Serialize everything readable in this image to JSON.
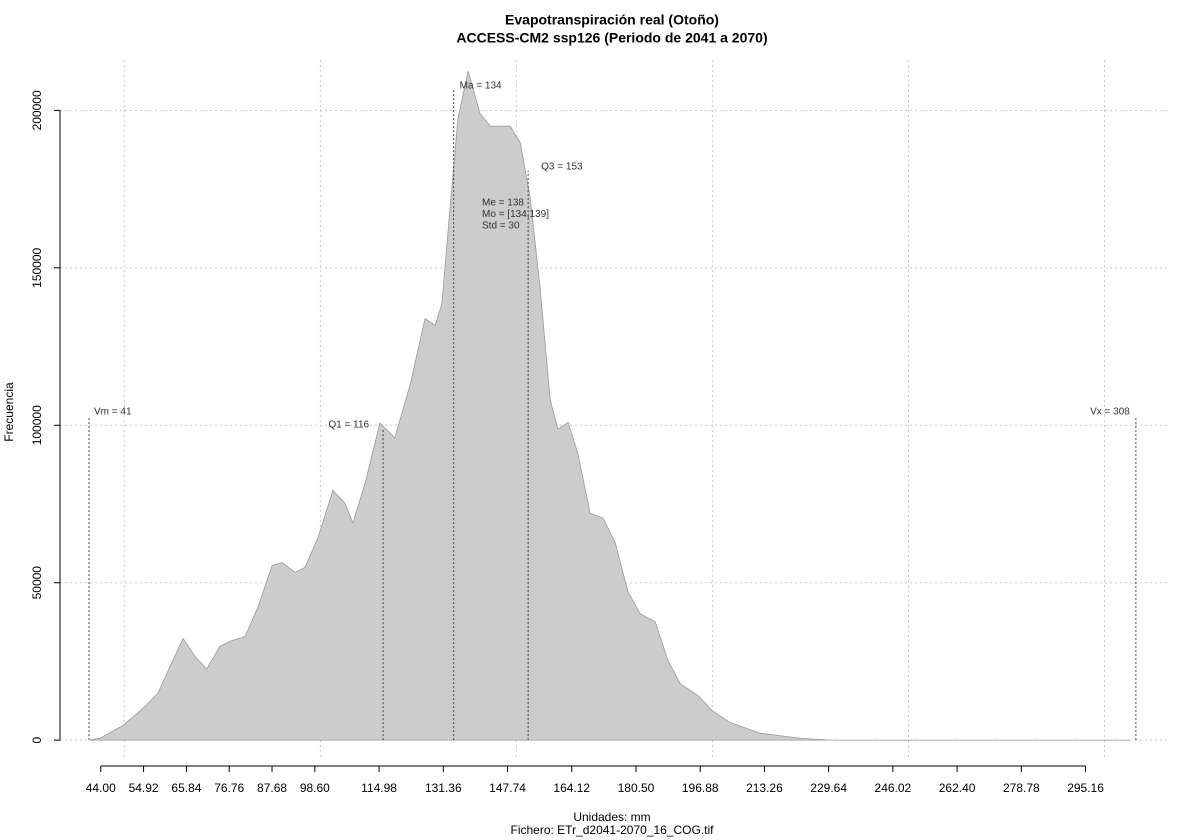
{
  "chart_data": {
    "type": "area",
    "title": "Evapotranspiración real (Otoño)",
    "subtitle": "ACCESS-CM2 ssp126 (Periodo de 2041 a 2070)",
    "xlabel": "Unidades: mm",
    "caption": "Fichero: ETr_d2041-2070_16_COG.tif",
    "ylabel": "Frecuencia",
    "color": "#cccccc",
    "edge_color": "#999999",
    "grid": true,
    "x": [
      41,
      43.8,
      49.7,
      55.3,
      58.6,
      61.7,
      65,
      68,
      71,
      74.4,
      77,
      80.8,
      84.1,
      87.7,
      90.2,
      93.6,
      96.1,
      99.4,
      103.2,
      106.3,
      108.3,
      111.4,
      115.2,
      119,
      122.9,
      126.7,
      129.3,
      131,
      133.1,
      135.1,
      137.7,
      140.7,
      143.3,
      148.4,
      151,
      153.5,
      156,
      158.6,
      160.6,
      163.2,
      165.7,
      168.8,
      172.1,
      175.2,
      178.5,
      181.6,
      185.4,
      188.7,
      191.8,
      196.4,
      199.9,
      204.5,
      212.2,
      222.4,
      230,
      306.6
    ],
    "values": [
      0,
      600,
      4700,
      10700,
      15000,
      23500,
      32300,
      26600,
      22600,
      29800,
      31400,
      32900,
      42300,
      55500,
      56400,
      53300,
      54900,
      64300,
      79300,
      75200,
      69000,
      81500,
      100700,
      96000,
      112900,
      133900,
      131700,
      138600,
      169300,
      197500,
      212500,
      199100,
      195000,
      195000,
      189700,
      172400,
      144200,
      108200,
      98800,
      100900,
      90900,
      72100,
      70500,
      62700,
      47000,
      40100,
      37600,
      25100,
      17900,
      14100,
      9400,
      5600,
      2200,
      600,
      0,
      0
    ],
    "xlim": [
      33.6,
      316.7
    ],
    "ylim": [
      -6300,
      216000
    ],
    "yticks": [
      0,
      50000,
      100000,
      150000,
      200000
    ],
    "xgrid": [
      50,
      100,
      150,
      200,
      250,
      300
    ],
    "xticks": [
      {
        "value": 44,
        "label": "44.00"
      },
      54.92,
      65.84,
      76.76,
      87.68,
      {
        "value": 98.6,
        "label": "98.60"
      },
      114.98,
      131.36,
      147.74,
      164.12,
      {
        "value": 180.5,
        "label": "180.50"
      },
      196.88,
      213.26,
      229.64,
      246.02,
      {
        "value": 262.4,
        "label": "262.40"
      },
      278.78,
      295.16
    ],
    "markers": [
      {
        "label": "Vm = 41",
        "value": 41
      },
      {
        "label": "Q1 = 116",
        "value": 116
      },
      {
        "label": "Ma = 134",
        "value": 134
      },
      {
        "label": "Q3 = 153",
        "value": 153
      },
      {
        "label": "Vx = 308",
        "value": 308
      }
    ],
    "stats_text": [
      "Me = 138",
      "Mo = [134,139]",
      "Std = 30"
    ]
  }
}
